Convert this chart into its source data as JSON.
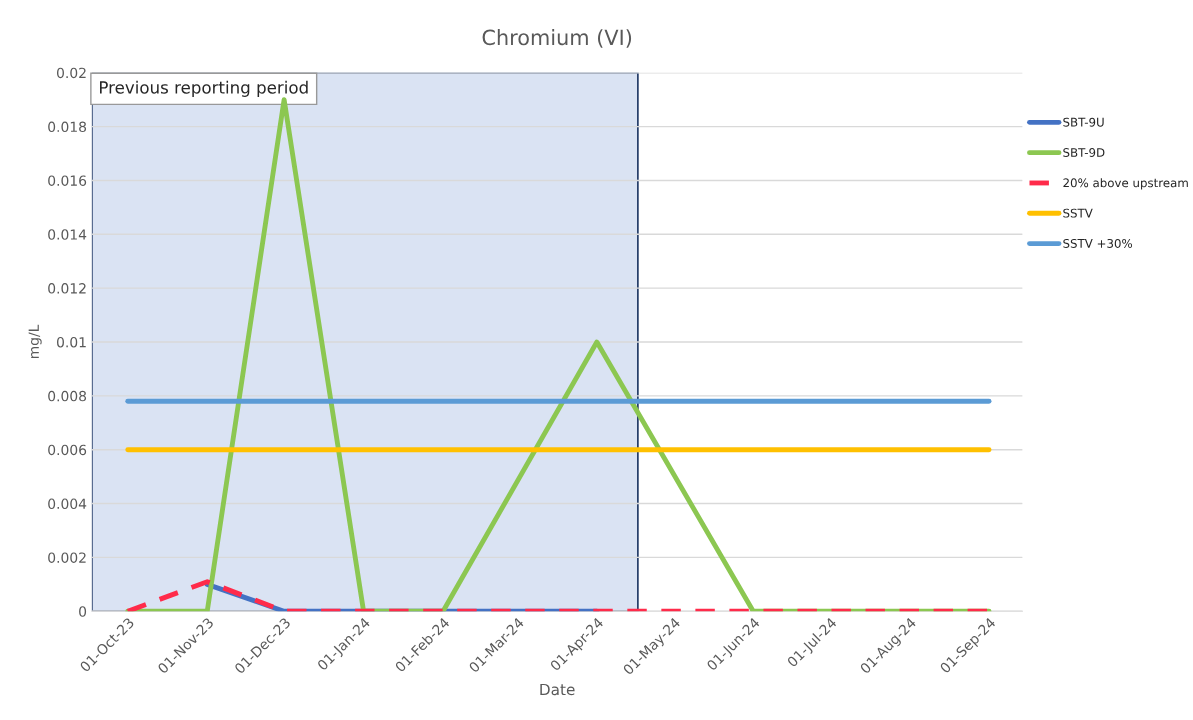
{
  "chart_data": {
    "type": "line",
    "title": "Chromium (VI)",
    "xlabel": "Date",
    "ylabel": "mg/L",
    "xlim": [
      "2023-09-17",
      "2024-09-14"
    ],
    "xticks": [
      {
        "value": "2023-10-01",
        "label": "01-Oct-23"
      },
      {
        "value": "2023-11-01",
        "label": "01-Nov-23"
      },
      {
        "value": "2023-12-01",
        "label": "01-Dec-23"
      },
      {
        "value": "2024-01-01",
        "label": "01-Jan-24"
      },
      {
        "value": "2024-02-01",
        "label": "01-Feb-24"
      },
      {
        "value": "2024-03-01",
        "label": "01-Mar-24"
      },
      {
        "value": "2024-04-01",
        "label": "01-Apr-24"
      },
      {
        "value": "2024-05-01",
        "label": "01-May-24"
      },
      {
        "value": "2024-06-01",
        "label": "01-Jun-24"
      },
      {
        "value": "2024-07-01",
        "label": "01-Jul-24"
      },
      {
        "value": "2024-08-01",
        "label": "01-Aug-24"
      },
      {
        "value": "2024-09-01",
        "label": "01-Sep-24"
      }
    ],
    "ylim": [
      0,
      0.02
    ],
    "yticks": [
      0,
      0.002,
      0.004,
      0.006,
      0.008,
      0.01,
      0.012,
      0.014,
      0.016,
      0.018,
      0.02
    ],
    "grid": "y",
    "legend": "right",
    "marker": "none",
    "bands": [
      {
        "axis": "x",
        "from": "2023-09-17",
        "to": "2024-04-17",
        "label": "Previous reporting period",
        "color": "#dae3f3"
      }
    ],
    "series": [
      {
        "name": "SBT-9U",
        "color": "#4472c4",
        "x": [
          "2023-11-01",
          "2023-12-01",
          "2024-01-01",
          "2024-02-01",
          "2024-04-01"
        ],
        "values": [
          0.001,
          0,
          0,
          0,
          0
        ]
      },
      {
        "name": "SBT-9D",
        "color": "#8cc751",
        "x": [
          "2023-10-01",
          "2023-11-01",
          "2023-12-01",
          "2024-01-01",
          "2024-02-01",
          "2024-04-01",
          "2024-06-01",
          "2024-07-01",
          "2024-08-01",
          "2024-09-01"
        ],
        "values": [
          0,
          0,
          0.019,
          0,
          0,
          0.01,
          0,
          0,
          0,
          0
        ]
      },
      {
        "name": "20% above upstream",
        "color": "#ff2b4a",
        "line_style": "dashed",
        "x": [
          "2023-10-01",
          "2023-11-01",
          "2023-12-01",
          "2024-01-01",
          "2024-02-01",
          "2024-03-01",
          "2024-04-01",
          "2024-05-01",
          "2024-06-01",
          "2024-07-01",
          "2024-08-01",
          "2024-09-01"
        ],
        "values": [
          0,
          0.0011,
          0,
          0,
          0,
          0,
          0,
          0,
          0,
          0,
          0,
          0
        ]
      },
      {
        "name": "SSTV",
        "color": "#ffc000",
        "x": [
          "2023-10-01",
          "2024-09-01"
        ],
        "values": [
          0.006,
          0.006
        ]
      },
      {
        "name": "SSTV +30%",
        "color": "#5b9bd5",
        "x": [
          "2023-10-01",
          "2024-09-01"
        ],
        "values": [
          0.0078,
          0.0078
        ]
      }
    ]
  }
}
